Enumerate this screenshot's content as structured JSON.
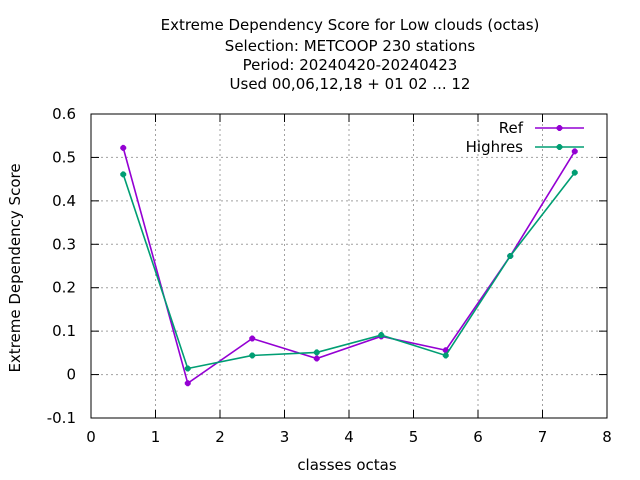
{
  "chart_data": {
    "type": "line",
    "title_lines": [
      "Extreme Dependency Score  for Low clouds (octas)",
      "Selection: METCOOP    230 stations",
      "Period: 20240420-20240423",
      "Used  00,06,12,18 + 01 02 ... 12"
    ],
    "xlabel": "classes octas",
    "ylabel": "Extreme Dependency Score",
    "xlim": [
      0,
      8
    ],
    "ylim": [
      -0.1,
      0.6
    ],
    "xticks": [
      "0",
      "1",
      "2",
      "3",
      "4",
      "5",
      "6",
      "7",
      "8"
    ],
    "yticks": [
      "-0.1",
      "0",
      "0.1",
      "0.2",
      "0.3",
      "0.4",
      "0.5",
      "0.6"
    ],
    "grid": true,
    "legend_position": "top-right",
    "x": [
      0.5,
      1.5,
      2.5,
      3.5,
      4.5,
      5.5,
      6.5,
      7.5
    ],
    "series": [
      {
        "name": "Ref",
        "color": "#9400d3",
        "values": [
          0.522,
          -0.02,
          0.083,
          0.037,
          0.088,
          0.056,
          0.273,
          0.514
        ]
      },
      {
        "name": "Highres",
        "color": "#009e73",
        "values": [
          0.461,
          0.014,
          0.044,
          0.051,
          0.091,
          0.044,
          0.273,
          0.465
        ]
      }
    ]
  }
}
